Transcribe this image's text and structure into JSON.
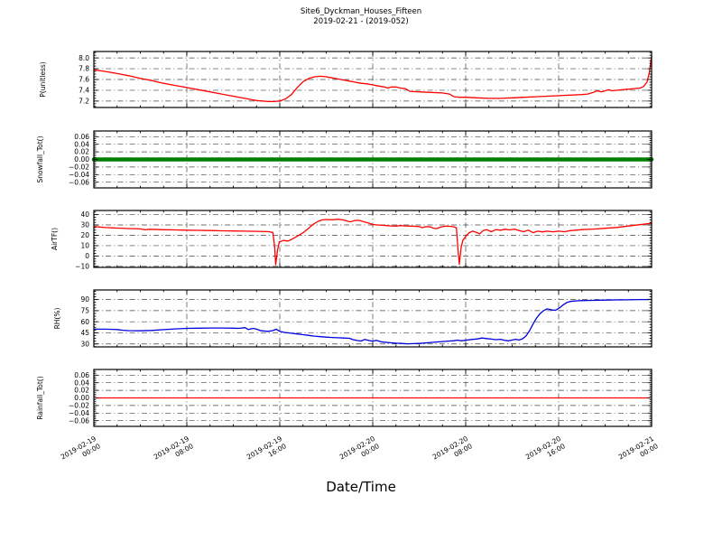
{
  "figure": {
    "title": "Site6_Dyckman_Houses_Fifteen",
    "subtitle": "2019-02-21 - (2019-052)",
    "xlabel": "Date/Time",
    "background": "#ffffff",
    "grid_style": "dash-dot",
    "colors": {
      "red": "#ff0000",
      "green": "#008000",
      "blue": "#0000dd",
      "frame": "#000000"
    }
  },
  "chart_data": {
    "type": "line",
    "title": "Site6_Dyckman_Houses_Fifteen",
    "subtitle": "2019-02-21 - (2019-052)",
    "xlabel": "Date/Time",
    "grid": true,
    "legend": "none",
    "x_axis": {
      "range_hours": [
        0,
        48
      ],
      "major_tick_hours": [
        0,
        8,
        16,
        24,
        32,
        40,
        48
      ],
      "minor_step_hours": 2,
      "tick_labels": [
        [
          "2019-02-19",
          "00:00"
        ],
        [
          "2019-02-19",
          "08:00"
        ],
        [
          "2019-02-19",
          "16:00"
        ],
        [
          "2019-02-20",
          "00:00"
        ],
        [
          "2019-02-20",
          "08:00"
        ],
        [
          "2019-02-20",
          "16:00"
        ],
        [
          "2019-02-21",
          "00:00"
        ]
      ]
    },
    "panels": [
      {
        "id": "p",
        "ylabel": "P(unitless)",
        "color": "#ff0000",
        "linewidth": 1.3,
        "ylim": [
          7.08,
          8.12
        ],
        "yticks": [
          7.2,
          7.4,
          7.6,
          7.8,
          8.0
        ],
        "ytick_labels": [
          "7.2",
          "7.4",
          "7.6",
          "7.8",
          "8.0"
        ],
        "points": [
          [
            0,
            7.78
          ],
          [
            1,
            7.75
          ],
          [
            2,
            7.71
          ],
          [
            3,
            7.67
          ],
          [
            4,
            7.62
          ],
          [
            5,
            7.58
          ],
          [
            6,
            7.53
          ],
          [
            7,
            7.49
          ],
          [
            8,
            7.45
          ],
          [
            9,
            7.41
          ],
          [
            10,
            7.37
          ],
          [
            11,
            7.33
          ],
          [
            12,
            7.29
          ],
          [
            13,
            7.25
          ],
          [
            13.5,
            7.23
          ],
          [
            14,
            7.21
          ],
          [
            14.5,
            7.2
          ],
          [
            15,
            7.19
          ],
          [
            15.5,
            7.19
          ],
          [
            16,
            7.2
          ],
          [
            16.5,
            7.24
          ],
          [
            17,
            7.32
          ],
          [
            17.5,
            7.45
          ],
          [
            18,
            7.56
          ],
          [
            18.5,
            7.62
          ],
          [
            19,
            7.65
          ],
          [
            19.5,
            7.66
          ],
          [
            20,
            7.65
          ],
          [
            20.5,
            7.63
          ],
          [
            21,
            7.61
          ],
          [
            21.5,
            7.59
          ],
          [
            22,
            7.57
          ],
          [
            22.5,
            7.55
          ],
          [
            23,
            7.53
          ],
          [
            23.5,
            7.52
          ],
          [
            24,
            7.5
          ],
          [
            24.5,
            7.48
          ],
          [
            25,
            7.46
          ],
          [
            25.3,
            7.44
          ],
          [
            25.6,
            7.46
          ],
          [
            26,
            7.46
          ],
          [
            26.4,
            7.44
          ],
          [
            26.8,
            7.43
          ],
          [
            27.2,
            7.38
          ],
          [
            28,
            7.37
          ],
          [
            29,
            7.36
          ],
          [
            30,
            7.35
          ],
          [
            30.6,
            7.33
          ],
          [
            31,
            7.28
          ],
          [
            31.5,
            7.27
          ],
          [
            32,
            7.27
          ],
          [
            33,
            7.26
          ],
          [
            34,
            7.25
          ],
          [
            35,
            7.25
          ],
          [
            36,
            7.26
          ],
          [
            37,
            7.27
          ],
          [
            38,
            7.28
          ],
          [
            39,
            7.29
          ],
          [
            40,
            7.3
          ],
          [
            41,
            7.31
          ],
          [
            42,
            7.32
          ],
          [
            42.5,
            7.33
          ],
          [
            43,
            7.36
          ],
          [
            43.3,
            7.39
          ],
          [
            43.7,
            7.37
          ],
          [
            44,
            7.39
          ],
          [
            44.3,
            7.41
          ],
          [
            44.6,
            7.39
          ],
          [
            45,
            7.4
          ],
          [
            45.5,
            7.41
          ],
          [
            46,
            7.42
          ],
          [
            46.5,
            7.43
          ],
          [
            47,
            7.44
          ],
          [
            47.3,
            7.47
          ],
          [
            47.6,
            7.55
          ],
          [
            47.8,
            7.72
          ],
          [
            47.9,
            7.88
          ],
          [
            48,
            8.03
          ]
        ]
      },
      {
        "id": "snowfall",
        "ylabel": "Snowfall_Tot()",
        "color": "#008000",
        "linewidth": 4.5,
        "ylim": [
          -0.075,
          0.075
        ],
        "yticks": [
          -0.06,
          -0.04,
          -0.02,
          0,
          0.02,
          0.04,
          0.06
        ],
        "ytick_labels": [
          "−0.06",
          "−0.04",
          "−0.02",
          "0.00",
          "0.02",
          "0.04",
          "0.06"
        ],
        "points": [
          [
            0,
            0
          ],
          [
            48,
            0
          ]
        ]
      },
      {
        "id": "airtf",
        "ylabel": "AirTF()",
        "color": "#ff0000",
        "linewidth": 1.3,
        "ylim": [
          -11,
          44
        ],
        "yticks": [
          -10,
          0,
          10,
          20,
          30,
          40
        ],
        "ytick_labels": [
          "−10",
          "0",
          "10",
          "20",
          "30",
          "40"
        ],
        "points": [
          [
            0,
            28.5
          ],
          [
            1,
            27.5
          ],
          [
            2,
            27
          ],
          [
            3,
            26.5
          ],
          [
            4,
            26.2
          ],
          [
            4.4,
            25.3
          ],
          [
            4.8,
            25.8
          ],
          [
            6,
            25.4
          ],
          [
            7,
            25.2
          ],
          [
            8,
            25
          ],
          [
            9,
            24.8
          ],
          [
            10,
            24.6
          ],
          [
            11,
            24.4
          ],
          [
            12,
            24.2
          ],
          [
            13,
            24
          ],
          [
            14,
            23.8
          ],
          [
            15,
            23.6
          ],
          [
            15.4,
            22.8
          ],
          [
            15.55,
            10
          ],
          [
            15.65,
            -8.5
          ],
          [
            15.8,
            5
          ],
          [
            15.95,
            13.5
          ],
          [
            16.3,
            15
          ],
          [
            16.7,
            14.5
          ],
          [
            17,
            16
          ],
          [
            17.5,
            19
          ],
          [
            18,
            22.5
          ],
          [
            18.4,
            26
          ],
          [
            18.7,
            29
          ],
          [
            19,
            31.5
          ],
          [
            19.3,
            33.5
          ],
          [
            19.6,
            34.8
          ],
          [
            20,
            35.3
          ],
          [
            20.5,
            35
          ],
          [
            21,
            35.5
          ],
          [
            21.5,
            34.8
          ],
          [
            21.8,
            33.8
          ],
          [
            22.1,
            33
          ],
          [
            22.4,
            34.2
          ],
          [
            22.8,
            34.5
          ],
          [
            23.2,
            33.2
          ],
          [
            23.6,
            32
          ],
          [
            24,
            30.5
          ],
          [
            24.4,
            30
          ],
          [
            24.8,
            29.7
          ],
          [
            25.2,
            29.4
          ],
          [
            25.6,
            29.1
          ],
          [
            26,
            28.9
          ],
          [
            26.4,
            29.4
          ],
          [
            26.8,
            29.1
          ],
          [
            27.2,
            28.9
          ],
          [
            27.6,
            28.7
          ],
          [
            28,
            28.5
          ],
          [
            28.25,
            27.4
          ],
          [
            28.6,
            28.4
          ],
          [
            29,
            28
          ],
          [
            29.2,
            26.9
          ],
          [
            29.5,
            26.5
          ],
          [
            29.9,
            28.2
          ],
          [
            30.3,
            28.9
          ],
          [
            30.7,
            28.6
          ],
          [
            31,
            28.2
          ],
          [
            31.2,
            27.2
          ],
          [
            31.35,
            5
          ],
          [
            31.45,
            -8
          ],
          [
            31.6,
            8
          ],
          [
            31.75,
            15
          ],
          [
            32,
            19
          ],
          [
            32.3,
            22.5
          ],
          [
            32.6,
            24
          ],
          [
            32.9,
            23
          ],
          [
            33.2,
            21.5
          ],
          [
            33.5,
            24.5
          ],
          [
            33.8,
            25.5
          ],
          [
            34.2,
            23.5
          ],
          [
            34.6,
            25.5
          ],
          [
            35,
            25
          ],
          [
            35.4,
            25.8
          ],
          [
            35.8,
            25.2
          ],
          [
            36.2,
            26
          ],
          [
            36.6,
            24.5
          ],
          [
            37,
            23.5
          ],
          [
            37.4,
            25
          ],
          [
            37.8,
            22.5
          ],
          [
            38.2,
            24
          ],
          [
            38.6,
            23.3
          ],
          [
            39,
            24
          ],
          [
            39.5,
            23.4
          ],
          [
            40,
            24
          ],
          [
            40.5,
            23.5
          ],
          [
            41,
            24.5
          ],
          [
            41.5,
            25
          ],
          [
            42,
            25.5
          ],
          [
            43,
            26
          ],
          [
            44,
            26.8
          ],
          [
            45,
            27.6
          ],
          [
            46,
            29
          ],
          [
            47,
            30.3
          ],
          [
            47.5,
            31
          ],
          [
            48,
            31.6
          ]
        ]
      },
      {
        "id": "rh",
        "ylabel": "RH(%)",
        "color": "#0000dd",
        "linewidth": 1.3,
        "ylim": [
          26,
          103
        ],
        "yticks": [
          30,
          45,
          60,
          75,
          90
        ],
        "ytick_labels": [
          "30",
          "45",
          "60",
          "75",
          "90"
        ],
        "points": [
          [
            0,
            50
          ],
          [
            1,
            50
          ],
          [
            2,
            49.5
          ],
          [
            2.5,
            48.5
          ],
          [
            3,
            48
          ],
          [
            4,
            47.8
          ],
          [
            5,
            48.3
          ],
          [
            6,
            49.3
          ],
          [
            7,
            50.3
          ],
          [
            8,
            51
          ],
          [
            9,
            51.3
          ],
          [
            10,
            51.5
          ],
          [
            11,
            51.5
          ],
          [
            12,
            51.3
          ],
          [
            12.5,
            51
          ],
          [
            13,
            52
          ],
          [
            13.3,
            49.5
          ],
          [
            13.7,
            51
          ],
          [
            14,
            50
          ],
          [
            14.4,
            47.8
          ],
          [
            15,
            47
          ],
          [
            15.4,
            48
          ],
          [
            15.7,
            50
          ],
          [
            16,
            47
          ],
          [
            16.4,
            45.5
          ],
          [
            17,
            44.5
          ],
          [
            17.5,
            43.5
          ],
          [
            18,
            42.5
          ],
          [
            18.5,
            41.5
          ],
          [
            19,
            40.5
          ],
          [
            19.5,
            39.8
          ],
          [
            20,
            39.2
          ],
          [
            20.5,
            38.7
          ],
          [
            21,
            38.3
          ],
          [
            21.5,
            38
          ],
          [
            22,
            37.6
          ],
          [
            22.3,
            35.8
          ],
          [
            22.7,
            34.6
          ],
          [
            23,
            34
          ],
          [
            23.3,
            36
          ],
          [
            23.7,
            34.5
          ],
          [
            24,
            33.6
          ],
          [
            24.3,
            34.8
          ],
          [
            24.7,
            33
          ],
          [
            25,
            32.3
          ],
          [
            25.5,
            31.6
          ],
          [
            26,
            31
          ],
          [
            26.5,
            30.6
          ],
          [
            27,
            30.2
          ],
          [
            27.5,
            30.4
          ],
          [
            28,
            30.8
          ],
          [
            28.5,
            31.3
          ],
          [
            29,
            32
          ],
          [
            29.5,
            32.6
          ],
          [
            30,
            33.2
          ],
          [
            30.5,
            33.8
          ],
          [
            31,
            34.3
          ],
          [
            31.3,
            35.2
          ],
          [
            31.6,
            34.2
          ],
          [
            32,
            35
          ],
          [
            32.5,
            36
          ],
          [
            33,
            36.8
          ],
          [
            33.4,
            38
          ],
          [
            33.8,
            37.3
          ],
          [
            34.2,
            36.5
          ],
          [
            34.6,
            35.8
          ],
          [
            35,
            36.3
          ],
          [
            35.3,
            35
          ],
          [
            35.7,
            34.2
          ],
          [
            36,
            35.3
          ],
          [
            36.3,
            36.3
          ],
          [
            36.6,
            35.3
          ],
          [
            36.9,
            37
          ],
          [
            37.2,
            41
          ],
          [
            37.5,
            48
          ],
          [
            37.8,
            57
          ],
          [
            38.1,
            65
          ],
          [
            38.4,
            71
          ],
          [
            38.7,
            75
          ],
          [
            39,
            77.5
          ],
          [
            39.2,
            76.8
          ],
          [
            39.5,
            75.6
          ],
          [
            39.8,
            76
          ],
          [
            40.1,
            79
          ],
          [
            40.4,
            83
          ],
          [
            40.7,
            86
          ],
          [
            41,
            87.5
          ],
          [
            41.3,
            88
          ],
          [
            41.7,
            88.4
          ],
          [
            42,
            88.6
          ],
          [
            42.5,
            88.8
          ],
          [
            43,
            89
          ],
          [
            44,
            89.3
          ],
          [
            45,
            89.5
          ],
          [
            46,
            89.7
          ],
          [
            47,
            90
          ],
          [
            47.5,
            90
          ],
          [
            48,
            90.3
          ]
        ]
      },
      {
        "id": "rainfall",
        "ylabel": "Rainfall_Tot()",
        "color": "#ff0000",
        "linewidth": 1.2,
        "ylim": [
          -0.075,
          0.075
        ],
        "yticks": [
          -0.06,
          -0.04,
          -0.02,
          0,
          0.02,
          0.04,
          0.06
        ],
        "ytick_labels": [
          "−0.06",
          "−0.04",
          "−0.02",
          "0.00",
          "0.02",
          "0.04",
          "0.06"
        ],
        "points": [
          [
            0,
            0
          ],
          [
            48,
            0
          ]
        ]
      }
    ]
  }
}
